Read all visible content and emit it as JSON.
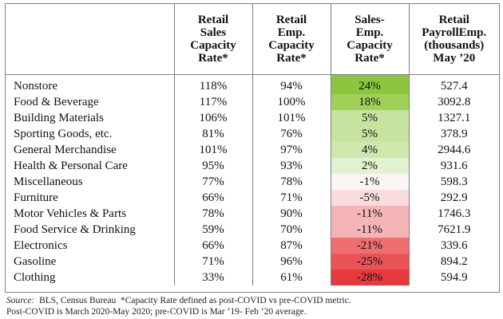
{
  "table": {
    "headers": [
      "",
      "Retail Sales Capacity Rate*",
      "Retail Emp. Capacity Rate*",
      "Sales-Emp. Capacity Rate*",
      "Retail PayrollEmp. (thousands) May ’20"
    ],
    "header_lines": [
      [],
      [
        "Retail",
        "Sales",
        "Capacity",
        "Rate*"
      ],
      [
        "Retail",
        "Emp.",
        "Capacity",
        "Rate*"
      ],
      [
        "Sales-",
        "Emp.",
        "Capacity",
        "Rate*"
      ],
      [
        "Retail",
        "PayrollEmp.",
        "(thousands)",
        "May ’20"
      ]
    ],
    "rows": [
      {
        "category": "Nonstore",
        "sales_rate": "118%",
        "emp_rate": "94%",
        "diff": "24%",
        "payroll": "527.4",
        "color": "#8cc63f"
      },
      {
        "category": "Food & Beverage",
        "sales_rate": "117%",
        "emp_rate": "100%",
        "diff": "18%",
        "payroll": "3092.8",
        "color": "#9fd05a"
      },
      {
        "category": "Building Materials",
        "sales_rate": "106%",
        "emp_rate": "101%",
        "diff": "5%",
        "payroll": "1327.1",
        "color": "#c6e3a0"
      },
      {
        "category": "Sporting Goods, etc.",
        "sales_rate": "81%",
        "emp_rate": "76%",
        "diff": "5%",
        "payroll": "378.9",
        "color": "#c6e3a0"
      },
      {
        "category": "General Merchandise",
        "sales_rate": "101%",
        "emp_rate": "97%",
        "diff": "4%",
        "payroll": "2944.6",
        "color": "#cfe8ae"
      },
      {
        "category": "Health & Personal Care",
        "sales_rate": "95%",
        "emp_rate": "93%",
        "diff": "2%",
        "payroll": "931.6",
        "color": "#e2f1cf"
      },
      {
        "category": "Miscellaneous",
        "sales_rate": "77%",
        "emp_rate": "78%",
        "diff": "-1%",
        "payroll": "598.3",
        "color": "#fdf5f5"
      },
      {
        "category": "Furniture",
        "sales_rate": "66%",
        "emp_rate": "71%",
        "diff": "-5%",
        "payroll": "292.9",
        "color": "#f9dcdd"
      },
      {
        "category": "Motor Vehicles & Parts",
        "sales_rate": "78%",
        "emp_rate": "90%",
        "diff": "-11%",
        "payroll": "1746.3",
        "color": "#f5b5b7"
      },
      {
        "category": "Food Service & Drinking",
        "sales_rate": "59%",
        "emp_rate": "70%",
        "diff": "-11%",
        "payroll": "7621.9",
        "color": "#f5b5b7"
      },
      {
        "category": "Electronics",
        "sales_rate": "66%",
        "emp_rate": "87%",
        "diff": "-21%",
        "payroll": "339.6",
        "color": "#ee6e72"
      },
      {
        "category": "Gasoline",
        "sales_rate": "71%",
        "emp_rate": "96%",
        "diff": "-25%",
        "payroll": "894.2",
        "color": "#ea5459"
      },
      {
        "category": "Clothing",
        "sales_rate": "33%",
        "emp_rate": "61%",
        "diff": "-28%",
        "payroll": "594.9",
        "color": "#e6393e"
      }
    ]
  },
  "source": {
    "prefix": "Source:",
    "line1_rest": "  BLS, Census Bureau  *Capacity Rate defined as post-COVID vs pre-COVID metric.",
    "line2": "Post-COVID is March 2020-May 2020; pre-COVID is Mar ’19- Feb ’20 average."
  }
}
